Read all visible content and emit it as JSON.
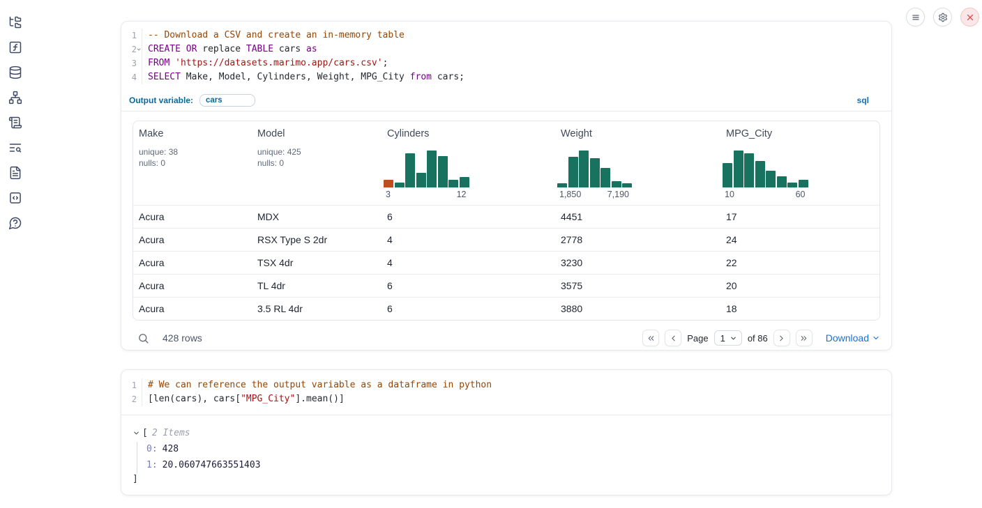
{
  "sidebar": {
    "icons": [
      {
        "name": "file-tree-icon"
      },
      {
        "name": "function-square-icon"
      },
      {
        "name": "database-icon"
      },
      {
        "name": "network-icon"
      },
      {
        "name": "scroll-text-icon"
      },
      {
        "name": "list-search-icon"
      },
      {
        "name": "file-document-icon"
      },
      {
        "name": "code-snippets-icon"
      },
      {
        "name": "help-chat-icon"
      }
    ]
  },
  "topbar": {
    "icons": [
      {
        "name": "menu-icon"
      },
      {
        "name": "gear-icon"
      },
      {
        "name": "close-icon"
      }
    ],
    "close_color": "#dd4c4c"
  },
  "sql_cell": {
    "lines": [
      {
        "n": "1",
        "fold": false,
        "tokens": [
          {
            "t": "-- Download a CSV and create an in-memory table",
            "c": "comment"
          }
        ]
      },
      {
        "n": "2",
        "fold": true,
        "tokens": [
          {
            "t": "CREATE OR",
            "c": "kw"
          },
          {
            "t": " replace ",
            "c": "plain"
          },
          {
            "t": "TABLE",
            "c": "kw"
          },
          {
            "t": " cars ",
            "c": "plain"
          },
          {
            "t": "as",
            "c": "kw"
          }
        ]
      },
      {
        "n": "3",
        "fold": false,
        "tokens": [
          {
            "t": "FROM",
            "c": "kw"
          },
          {
            "t": " ",
            "c": "plain"
          },
          {
            "t": "'https://datasets.marimo.app/cars.csv'",
            "c": "str"
          },
          {
            "t": ";",
            "c": "plain"
          }
        ]
      },
      {
        "n": "4",
        "fold": false,
        "tokens": [
          {
            "t": "SELECT",
            "c": "kw"
          },
          {
            "t": " Make, Model, Cylinders, Weight, MPG_City ",
            "c": "plain"
          },
          {
            "t": "from",
            "c": "kw"
          },
          {
            "t": " cars;",
            "c": "plain"
          }
        ]
      }
    ],
    "output_variable_label": "Output variable:",
    "output_variable_value": "cars",
    "language_badge": "sql"
  },
  "table": {
    "columns": [
      {
        "name": "Make",
        "stats": [
          "unique: 38",
          "nulls: 0"
        ],
        "histogram_ref": null
      },
      {
        "name": "Model",
        "stats": [
          "unique: 425",
          "nulls: 0"
        ],
        "histogram_ref": null
      },
      {
        "name": "Cylinders",
        "stats": [],
        "histogram_ref": 0
      },
      {
        "name": "Weight",
        "stats": [],
        "histogram_ref": 1
      },
      {
        "name": "MPG_City",
        "stats": [],
        "histogram_ref": 2
      }
    ],
    "rows": [
      [
        "Acura",
        "MDX",
        "6",
        "4451",
        "17"
      ],
      [
        "Acura",
        "RSX Type S 2dr",
        "4",
        "2778",
        "24"
      ],
      [
        "Acura",
        "TSX 4dr",
        "4",
        "3230",
        "22"
      ],
      [
        "Acura",
        "TL 4dr",
        "6",
        "3575",
        "20"
      ],
      [
        "Acura",
        "3.5 RL 4dr",
        "6",
        "3880",
        "18"
      ]
    ],
    "footer": {
      "row_count": "428 rows",
      "page_label": "Page",
      "page_value": "1",
      "of_label": "of 86",
      "download_label": "Download"
    }
  },
  "python_cell": {
    "lines": [
      {
        "n": "1",
        "fold": false,
        "tokens": [
          {
            "t": "# We can reference the output variable as a dataframe in python",
            "c": "comment"
          }
        ]
      },
      {
        "n": "2",
        "fold": false,
        "tokens": [
          {
            "t": "[len(cars), cars[",
            "c": "plain"
          },
          {
            "t": "\"MPG_City\"",
            "c": "str"
          },
          {
            "t": "].mean()]",
            "c": "plain"
          }
        ]
      }
    ],
    "output": {
      "bracket_open": "[",
      "items_label": "2 Items",
      "entries": [
        {
          "key": "0",
          "value": "428"
        },
        {
          "key": "1",
          "value": "20.060747663551403"
        }
      ],
      "bracket_close": "]"
    }
  },
  "chart_data": [
    {
      "type": "bar",
      "title": "Cylinders column histogram",
      "x_range": [
        3,
        12
      ],
      "x_tick_labels": [
        "3",
        "12"
      ],
      "bar_heights_relative_pct": [
        20,
        12,
        88,
        38,
        95,
        80,
        20,
        27
      ],
      "highlight_bar_index": 0,
      "bar_color": "#17735f",
      "highlight_color": "#c14d1e",
      "grid": false,
      "legend": false
    },
    {
      "type": "bar",
      "title": "Weight column histogram",
      "x_range": [
        1850,
        7190
      ],
      "x_tick_labels": [
        "1,850",
        "7,190"
      ],
      "bar_heights_relative_pct": [
        11,
        78,
        95,
        75,
        50,
        16,
        11
      ],
      "highlight_bar_index": null,
      "bar_color": "#17735f",
      "grid": false,
      "legend": false
    },
    {
      "type": "bar",
      "title": "MPG_City column histogram",
      "x_range": [
        10,
        60
      ],
      "x_tick_labels": [
        "10",
        "60"
      ],
      "bar_heights_relative_pct": [
        62,
        95,
        88,
        68,
        42,
        29,
        13,
        20
      ],
      "highlight_bar_index": null,
      "bar_color": "#17735f",
      "grid": false,
      "legend": false
    }
  ],
  "colors": {
    "keyword": "#770088",
    "string": "#aa1111",
    "comment": "#994400",
    "accent_blue": "#0a6a9a",
    "link_blue": "#1b6fd8",
    "histogram_teal": "#17735f",
    "histogram_orange": "#c14d1e"
  }
}
